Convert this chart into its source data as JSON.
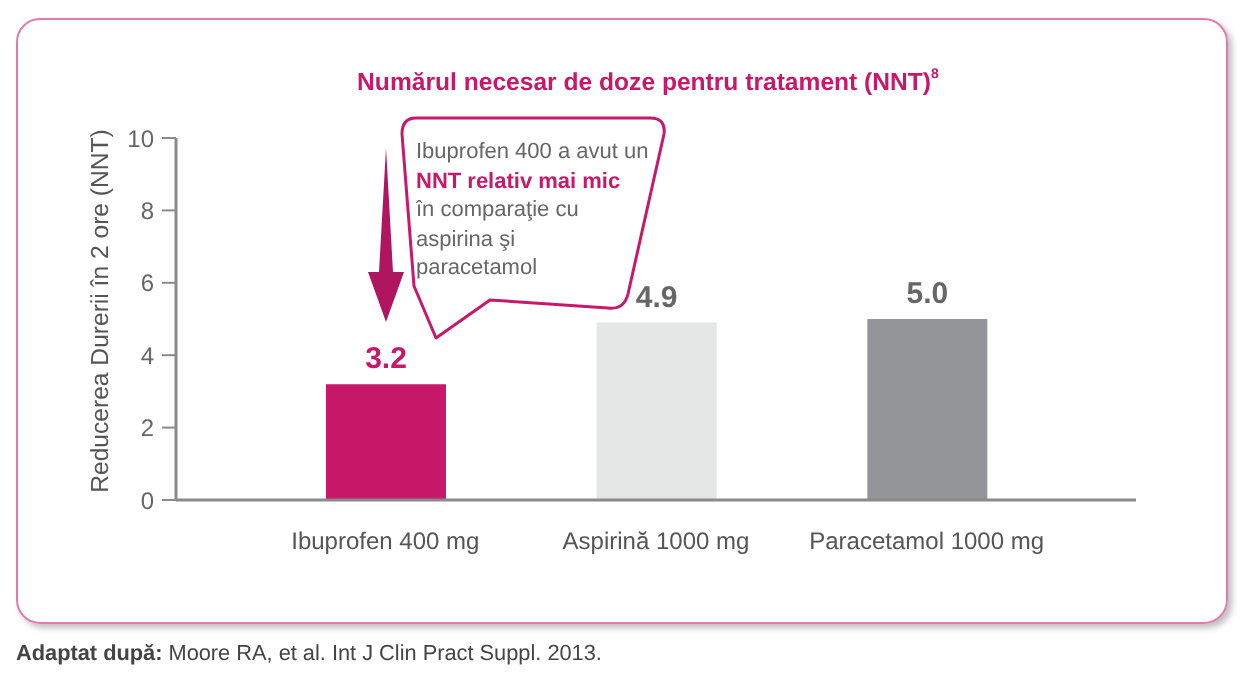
{
  "chart_data": {
    "type": "bar",
    "title": "Numărul necesar de doze pentru tratament (NNT)$^{8}$",
    "ylabel": "Reducerea Durerii în 2 ore (NNT)",
    "categories": [
      "Ibuprofen 400 mg",
      "Aspirină 1000 mg",
      "Paracetamol 1000 mg"
    ],
    "values": [
      3.2,
      4.9,
      5.0
    ],
    "value_labels": [
      "3.2",
      "4.9",
      "5.0"
    ],
    "colors": [
      "#c8186a",
      "#e5e6e6",
      "#939598"
    ],
    "ylim": [
      0,
      10
    ],
    "yticks": [
      0,
      2,
      4,
      6,
      8,
      10
    ],
    "annotations": [
      "Ibuprofen 400 a avut un",
      "NNT relativ mai mic",
      "în comparaţie cu aspirina şi paracetamol",
      "Adaptat după: Moore RA, et al. Int J Clin Pract Suppl. 2013."
    ]
  }
}
